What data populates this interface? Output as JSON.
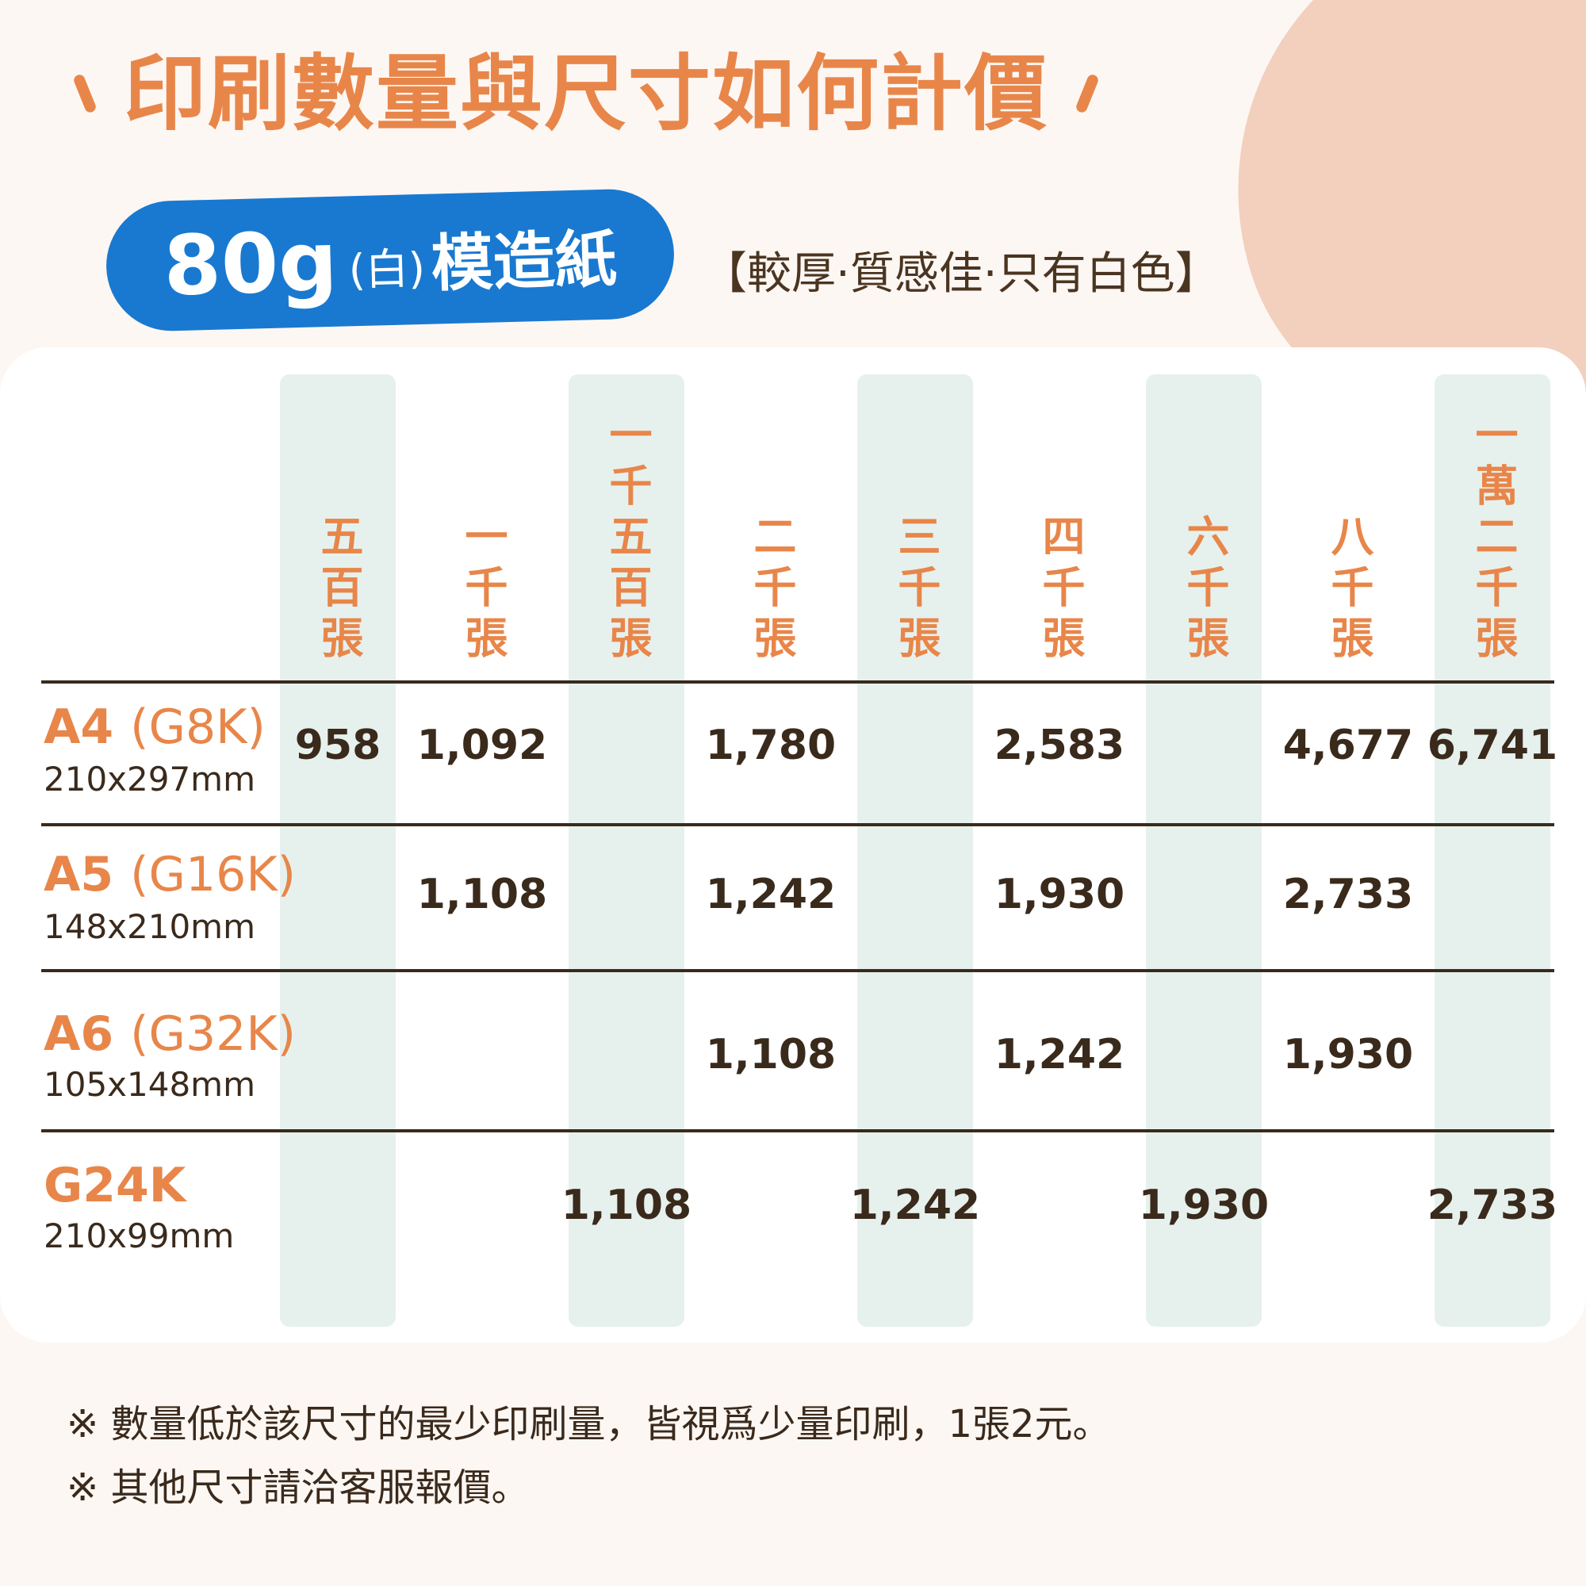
{
  "title": "印刷數量與尺寸如何計價",
  "paper": {
    "weight": "80g",
    "color_note": "(白)",
    "name": "模造紙",
    "description": "【較厚·質感佳·只有白色】"
  },
  "columns": [
    "五百張",
    "一千張",
    "一千五百張",
    "二千張",
    "三千張",
    "四千張",
    "六千張",
    "八千張",
    "一萬二千張"
  ],
  "rows": [
    {
      "name": "A4",
      "code": "(G8K)",
      "dims": "210x297mm",
      "prices": [
        "958",
        "1,092",
        "",
        "1,780",
        "",
        "2,583",
        "",
        "4,677",
        "6,741"
      ]
    },
    {
      "name": "A5",
      "code": "(G16K)",
      "dims": "148x210mm",
      "prices": [
        "",
        "1,108",
        "",
        "1,242",
        "",
        "1,930",
        "",
        "2,733",
        ""
      ]
    },
    {
      "name": "A6",
      "code": "(G32K)",
      "dims": "105x148mm",
      "prices": [
        "",
        "",
        "",
        "1,108",
        "",
        "1,242",
        "",
        "1,930",
        ""
      ]
    },
    {
      "name": "G24K",
      "code": "",
      "dims": "210x99mm",
      "prices": [
        "",
        "",
        "1,108",
        "",
        "1,242",
        "",
        "1,930",
        "",
        "2,733"
      ]
    }
  ],
  "notes": [
    "※ 數量低於該尺寸的最少印刷量，皆視爲少量印刷，1張2元。",
    "※ 其他尺寸請洽客服報價。"
  ],
  "colors": {
    "accent_orange": "#e8864a",
    "badge_blue": "#1979d0",
    "column_highlight": "#e6f1ee",
    "text_dark": "#3a2a1c",
    "background": "#fdf7f3",
    "decor_peach": "#f3cfbd"
  }
}
